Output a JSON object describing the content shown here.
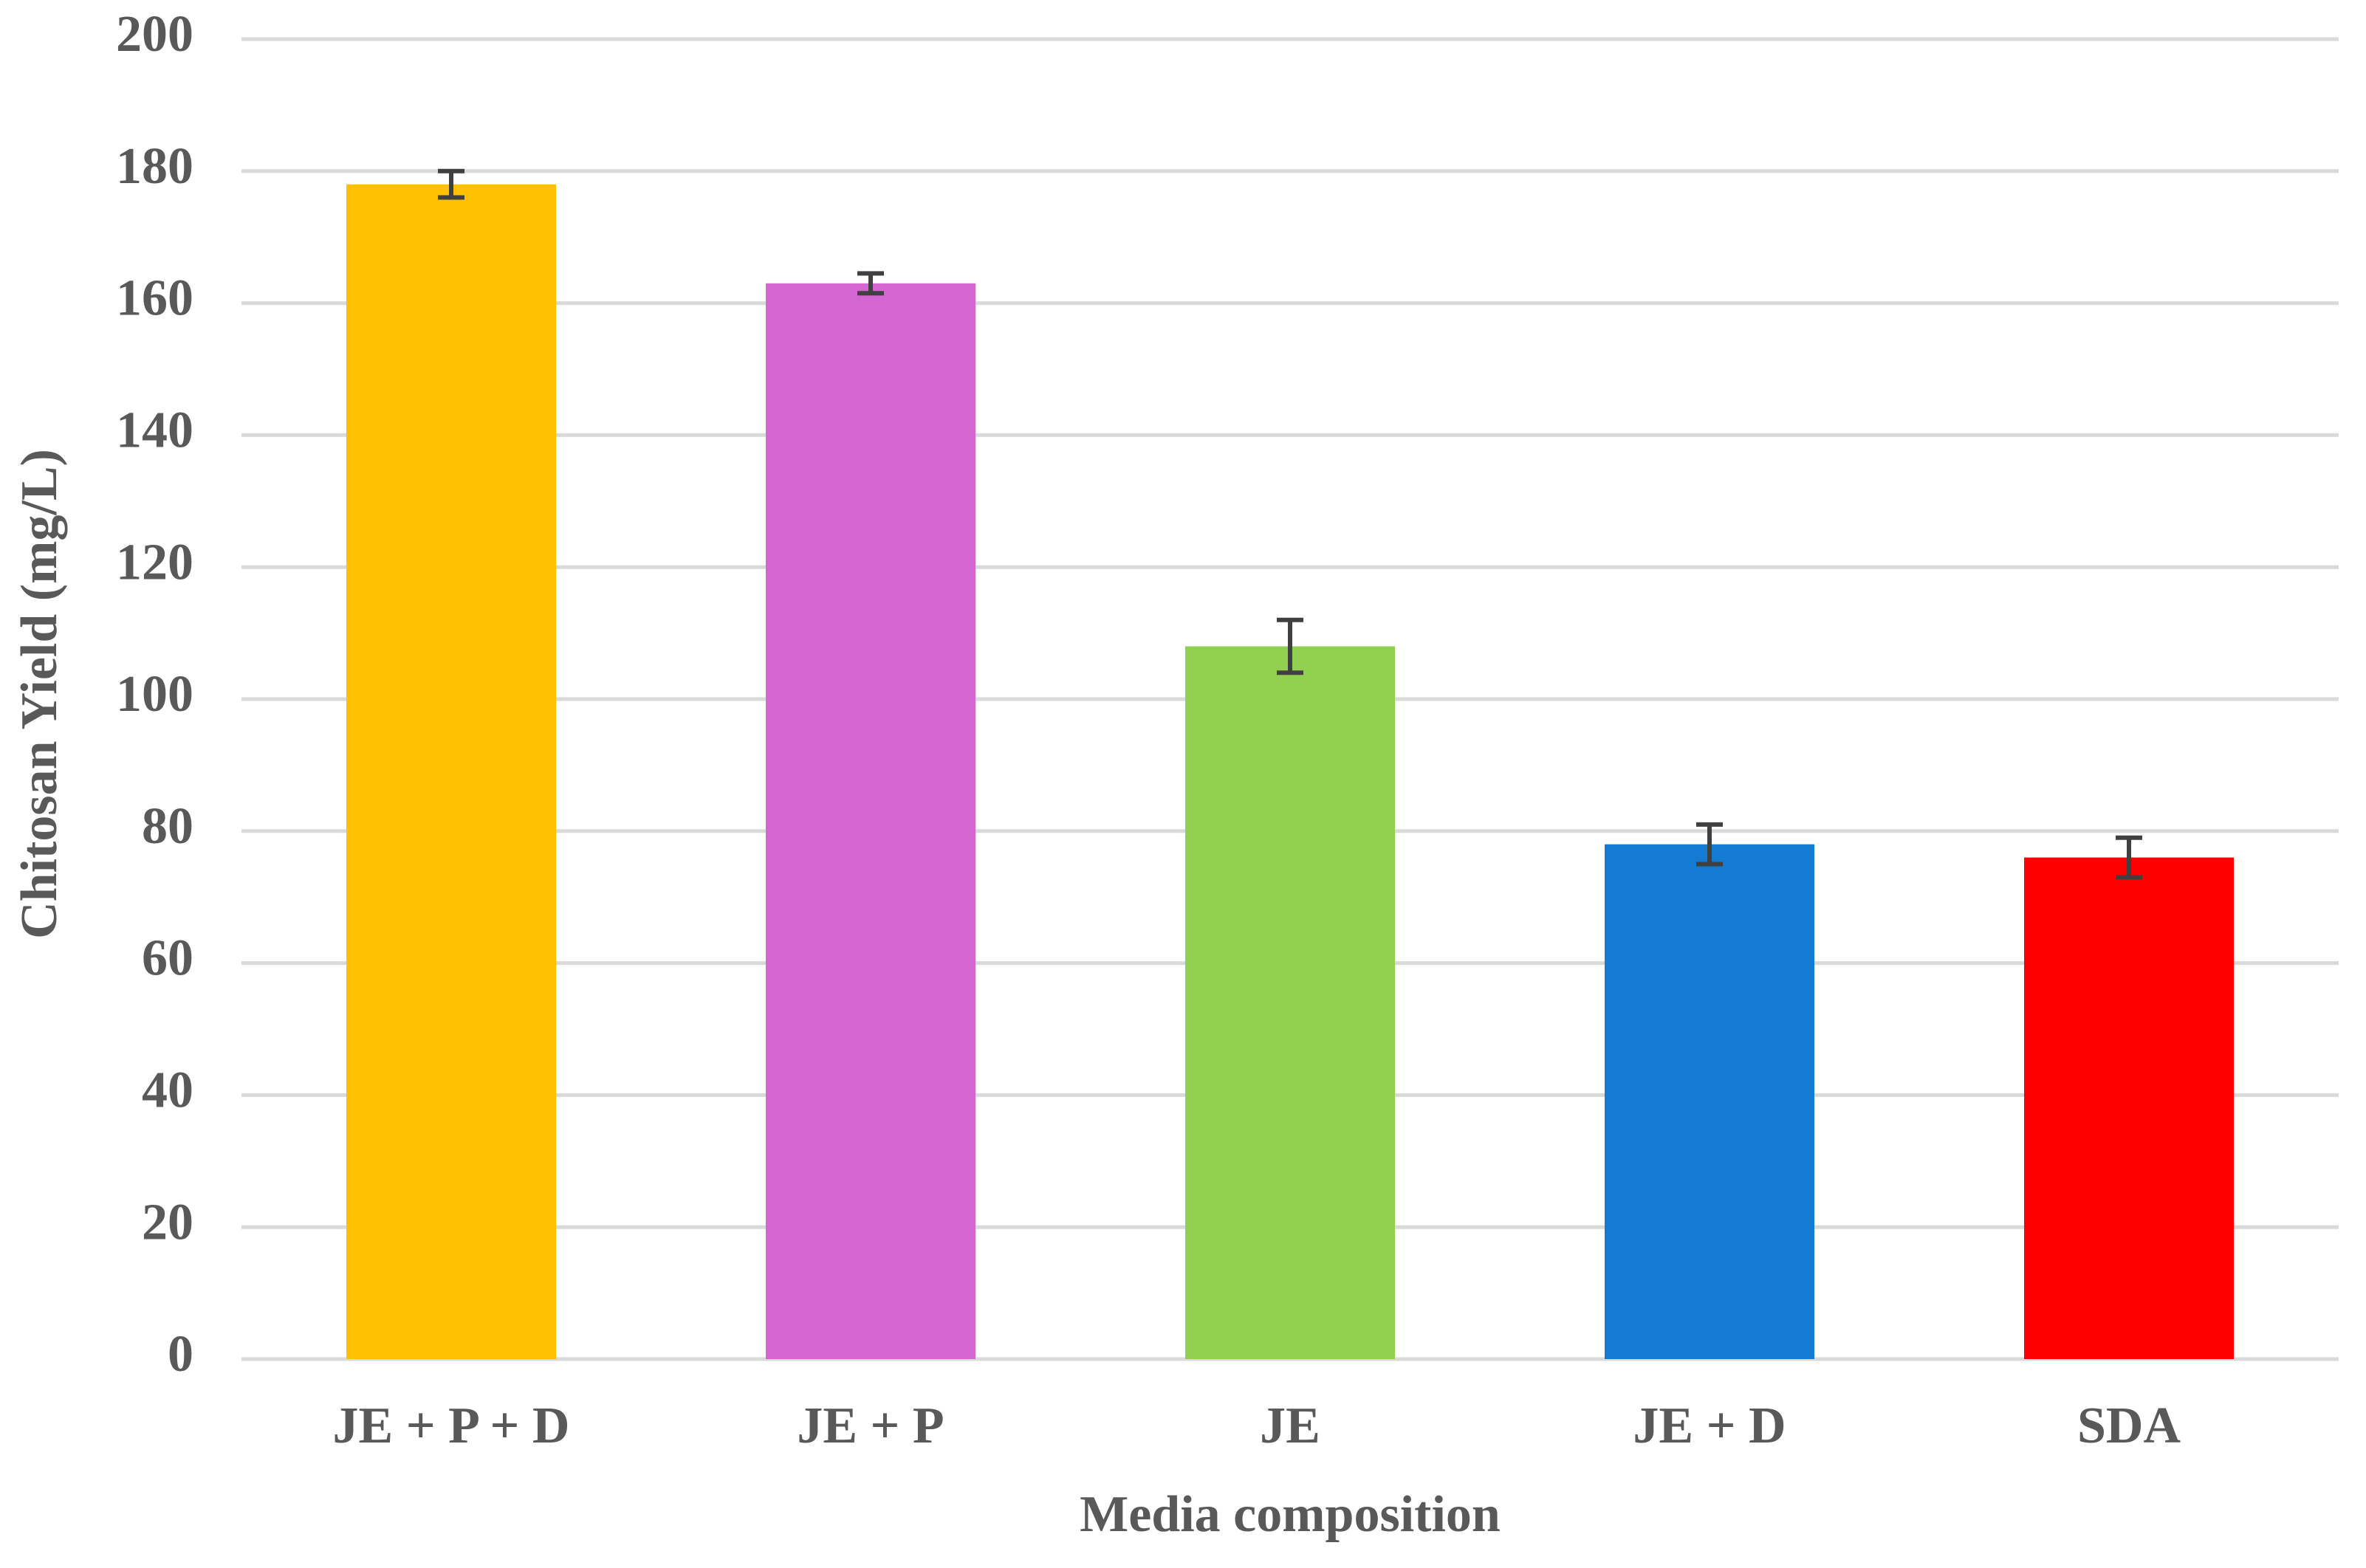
{
  "chart_data": {
    "type": "bar",
    "x_label": "Media composition",
    "y_label": "Chitosan Yield (mg/L)",
    "categories": [
      "JE + P + D",
      "JE + P",
      "JE",
      "JE + D",
      "SDA"
    ],
    "values": [
      178,
      163,
      108,
      78,
      76
    ],
    "errors": [
      2,
      1.5,
      4,
      3,
      3
    ],
    "colors": [
      "#FFC000",
      "#D466D2",
      "#92D050",
      "#137CD2",
      "#FF0000"
    ],
    "ylim": [
      0,
      200
    ],
    "yticks": [
      0,
      20,
      40,
      60,
      80,
      100,
      120,
      140,
      160,
      180,
      200
    ],
    "grid": true
  }
}
